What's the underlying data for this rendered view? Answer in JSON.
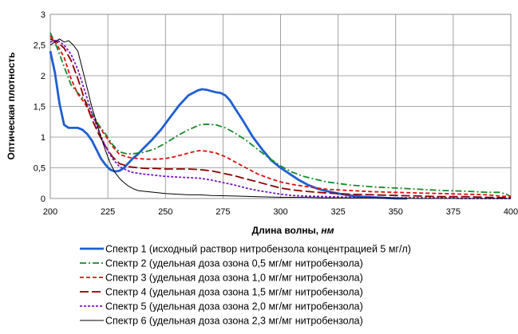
{
  "chart_data": {
    "type": "line",
    "title": "",
    "xlabel": {
      "main": "Длина волны, ",
      "unit": "нм"
    },
    "ylabel": "Оптическая плотность",
    "xlim": [
      200,
      400
    ],
    "ylim": [
      0,
      3
    ],
    "xticks": [
      "200",
      "225",
      "250",
      "275",
      "300",
      "325",
      "350",
      "375",
      "400"
    ],
    "yticks": [
      "0",
      "0,5",
      "1",
      "1,5",
      "2",
      "2,5",
      "3"
    ],
    "grid": true,
    "legend_position": "bottom",
    "series": [
      {
        "name": "Спектр 1 (исходный раствор нитробензола концентрацией 5 мг/л)",
        "color": "#1f5fd0",
        "dash": "solid",
        "x": [
          200,
          202,
          204,
          206,
          208,
          210,
          212,
          214,
          216,
          218,
          220,
          222,
          224,
          226,
          228,
          230,
          232,
          234,
          236,
          238,
          240,
          244,
          248,
          252,
          256,
          260,
          264,
          266,
          268,
          270,
          272,
          274,
          276,
          278,
          280,
          284,
          288,
          292,
          296,
          300,
          304,
          308,
          312,
          316,
          320,
          325,
          330,
          335,
          340,
          345,
          350,
          355
        ],
        "y": [
          2.4,
          2.05,
          1.55,
          1.2,
          1.15,
          1.15,
          1.15,
          1.12,
          1.05,
          0.95,
          0.8,
          0.65,
          0.55,
          0.47,
          0.44,
          0.45,
          0.5,
          0.58,
          0.66,
          0.72,
          0.8,
          0.95,
          1.12,
          1.32,
          1.52,
          1.68,
          1.76,
          1.78,
          1.77,
          1.75,
          1.73,
          1.72,
          1.68,
          1.6,
          1.48,
          1.25,
          1.0,
          0.8,
          0.62,
          0.5,
          0.4,
          0.3,
          0.22,
          0.16,
          0.12,
          0.08,
          0.05,
          0.03,
          0.02,
          0.01,
          0.0,
          0.0
        ]
      },
      {
        "name": "Спектр 2 (удельная доза озона 0,5 мг/мг нитробензола)",
        "color": "#158a28",
        "dash": "dashdot",
        "x": [
          200,
          203,
          206,
          209,
          212,
          215,
          218,
          221,
          224,
          227,
          230,
          233,
          236,
          240,
          245,
          250,
          255,
          260,
          265,
          268,
          272,
          276,
          280,
          285,
          290,
          295,
          300,
          305,
          310,
          320,
          330,
          340,
          350,
          360,
          370,
          380,
          390,
          395,
          398,
          400
        ],
        "y": [
          2.7,
          2.45,
          2.15,
          1.85,
          1.72,
          1.6,
          1.4,
          1.2,
          1.05,
          0.88,
          0.76,
          0.73,
          0.73,
          0.75,
          0.8,
          0.9,
          1.02,
          1.12,
          1.2,
          1.21,
          1.2,
          1.15,
          1.07,
          0.95,
          0.8,
          0.66,
          0.53,
          0.43,
          0.36,
          0.27,
          0.22,
          0.19,
          0.17,
          0.15,
          0.13,
          0.12,
          0.1,
          0.1,
          0.07,
          0.03
        ]
      },
      {
        "name": "Спектр 3 (удельная доза озона 1,0 мг/мг нитробензола)",
        "color": "#e01010",
        "dash": "dash",
        "x": [
          200,
          203,
          206,
          209,
          212,
          215,
          218,
          221,
          224,
          227,
          230,
          234,
          238,
          242,
          246,
          250,
          254,
          258,
          262,
          265,
          268,
          272,
          276,
          280,
          285,
          290,
          295,
          300,
          305,
          310,
          320,
          330,
          340,
          350,
          360,
          370,
          380,
          390,
          395,
          400
        ],
        "y": [
          2.65,
          2.5,
          2.3,
          1.95,
          1.7,
          1.55,
          1.35,
          1.18,
          1.02,
          0.85,
          0.72,
          0.67,
          0.65,
          0.64,
          0.64,
          0.65,
          0.68,
          0.72,
          0.76,
          0.78,
          0.77,
          0.74,
          0.68,
          0.6,
          0.5,
          0.4,
          0.33,
          0.27,
          0.23,
          0.2,
          0.15,
          0.13,
          0.11,
          0.1,
          0.09,
          0.08,
          0.07,
          0.06,
          0.04,
          0.03
        ]
      },
      {
        "name": "Спектр 4 (удельная доза озона 1,5 мг/мг нитробензола)",
        "color": "#8b0000",
        "dash": "longdash",
        "x": [
          200,
          203,
          206,
          209,
          212,
          215,
          218,
          221,
          224,
          227,
          230,
          234,
          238,
          242,
          246,
          250,
          255,
          260,
          265,
          270,
          275,
          280,
          285,
          290,
          295,
          300,
          305,
          310,
          320,
          330,
          340,
          350,
          360,
          370,
          380,
          390,
          400
        ],
        "y": [
          2.6,
          2.55,
          2.45,
          2.25,
          1.95,
          1.6,
          1.3,
          1.05,
          0.85,
          0.68,
          0.57,
          0.52,
          0.5,
          0.49,
          0.49,
          0.48,
          0.48,
          0.48,
          0.47,
          0.45,
          0.41,
          0.37,
          0.32,
          0.27,
          0.22,
          0.17,
          0.14,
          0.12,
          0.09,
          0.07,
          0.06,
          0.05,
          0.04,
          0.03,
          0.03,
          0.02,
          0.01
        ]
      },
      {
        "name": "Спектр 5 (удельная доза озона 2,0 мг/мг нитробензола)",
        "color": "#7a18c8",
        "dash": "dot",
        "x": [
          200,
          203,
          206,
          209,
          212,
          215,
          218,
          221,
          224,
          227,
          230,
          235,
          240,
          245,
          250,
          255,
          260,
          265,
          270,
          275,
          280,
          285,
          290,
          295,
          300,
          305,
          310,
          320,
          330,
          340,
          350,
          360,
          370,
          380,
          390,
          400
        ],
        "y": [
          2.55,
          2.58,
          2.5,
          2.35,
          2.1,
          1.75,
          1.4,
          1.1,
          0.85,
          0.65,
          0.52,
          0.43,
          0.4,
          0.38,
          0.36,
          0.35,
          0.34,
          0.33,
          0.3,
          0.26,
          0.22,
          0.17,
          0.13,
          0.1,
          0.07,
          0.05,
          0.04,
          0.03,
          0.02,
          0.02,
          0.01,
          0.01,
          0.01,
          0.0,
          0.0,
          0.0
        ]
      },
      {
        "name": "Спектр 6 (удельная доза озона 2,3 мг/мг нитробензола)",
        "color": "#000000",
        "dash": "solid-thin",
        "x": [
          200,
          202,
          204,
          206,
          208,
          210,
          212,
          214,
          216,
          218,
          220,
          222,
          224,
          226,
          228,
          230,
          232,
          234,
          236,
          238,
          240,
          245,
          250,
          255,
          260,
          265,
          270,
          280,
          290,
          300,
          310,
          320,
          340,
          360,
          380,
          400
        ],
        "y": [
          2.5,
          2.55,
          2.6,
          2.55,
          2.57,
          2.5,
          2.4,
          2.1,
          1.8,
          1.5,
          1.25,
          1.0,
          0.78,
          0.58,
          0.43,
          0.33,
          0.26,
          0.2,
          0.16,
          0.13,
          0.12,
          0.1,
          0.08,
          0.07,
          0.06,
          0.06,
          0.05,
          0.04,
          0.03,
          0.02,
          0.02,
          0.01,
          0.01,
          0.0,
          0.0,
          0.0
        ]
      }
    ]
  }
}
